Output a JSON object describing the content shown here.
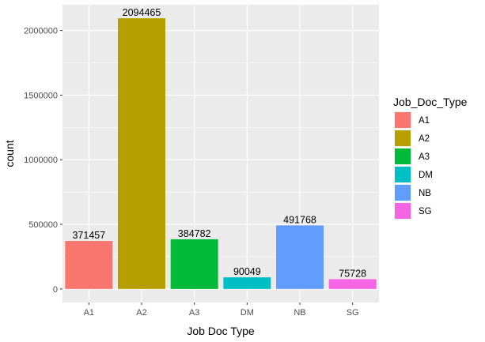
{
  "chart_data": {
    "type": "bar",
    "categories": [
      "A1",
      "A2",
      "A3",
      "DM",
      "NB",
      "SG"
    ],
    "values": [
      371457,
      2094465,
      384782,
      90049,
      491768,
      75728
    ],
    "data_labels": [
      "371457",
      "2094465",
      "384782",
      "90049",
      "491768",
      "75728"
    ],
    "colors": [
      "#F8766D",
      "#B79F00",
      "#00BA38",
      "#00BFC4",
      "#619CFF",
      "#F564E3"
    ],
    "xlabel": "Job Doc Type",
    "ylabel": "count",
    "ylim": [
      -104723,
      2199188
    ],
    "yticks": [
      0,
      500000,
      1000000,
      1500000,
      2000000
    ],
    "ytick_labels": [
      "0",
      "500000",
      "1000000",
      "1500000",
      "2000000"
    ],
    "grid": true,
    "panel_background": "#EBEBEB",
    "legend": {
      "title": "Job_Doc_Type",
      "placement": "right",
      "entries": [
        "A1",
        "A2",
        "A3",
        "DM",
        "NB",
        "SG"
      ]
    }
  }
}
